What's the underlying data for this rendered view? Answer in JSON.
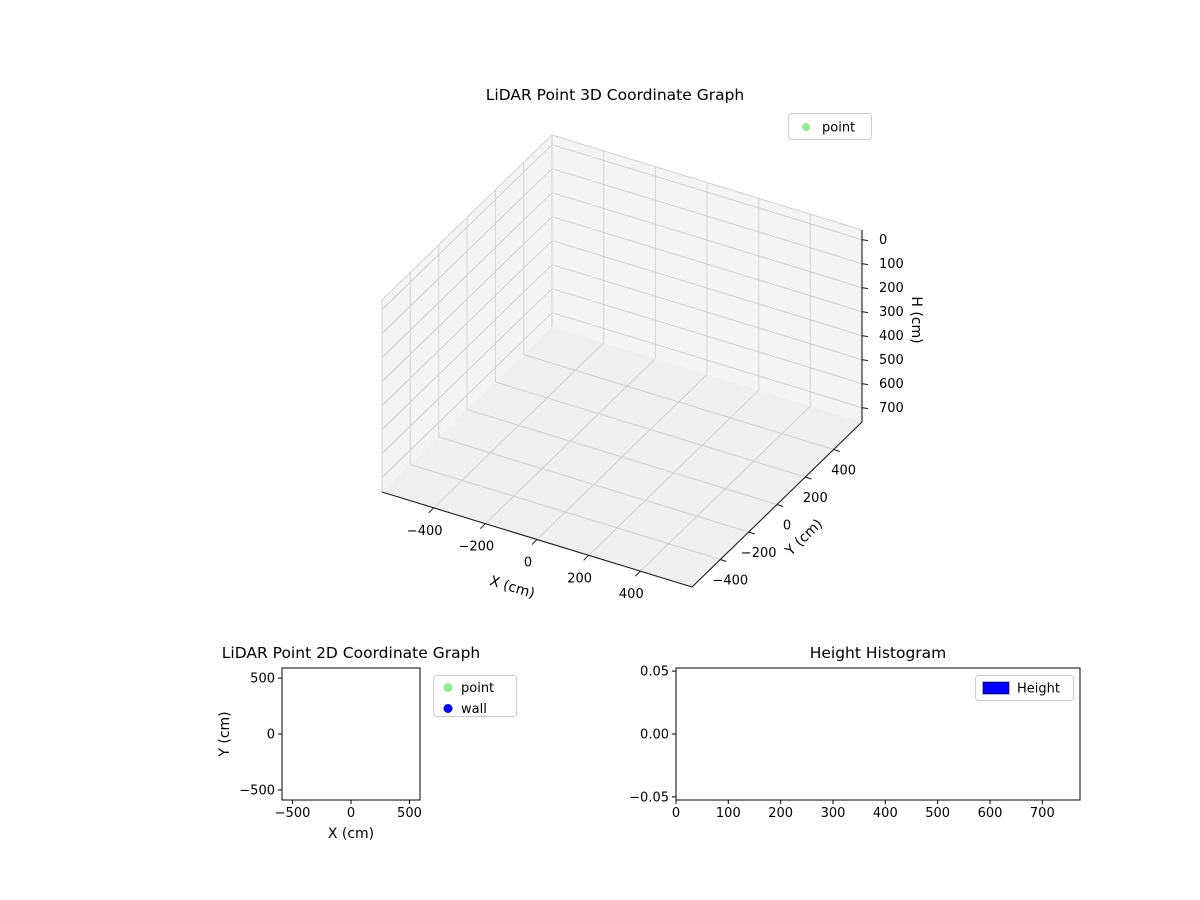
{
  "figure": {
    "background": "#ffffff",
    "colors": {
      "point": "#90ee90",
      "wall": "#0000ff",
      "height_bar": "#0000ff",
      "grid3d": "#d2d2d2",
      "pane3d": "#f2f2f2",
      "axis": "#1a1a1a",
      "legend_border": "#cccccc"
    }
  },
  "chart_data": [
    {
      "id": "plot3d",
      "type": "scatter3d",
      "title": "LiDAR Point 3D Coordinate Graph",
      "xlabel": "X (cm)",
      "ylabel": "Y (cm)",
      "zlabel": "H (cm)",
      "xlim": [
        -600,
        600
      ],
      "ylim": [
        -600,
        600
      ],
      "zlim": [
        -40,
        760
      ],
      "z_inverted": true,
      "grid": true,
      "x_tick_values": [
        -400,
        -200,
        0,
        200,
        400
      ],
      "x_tick_labels": [
        "−400",
        "−200",
        "0",
        "200",
        "400"
      ],
      "y_tick_values": [
        -400,
        -200,
        0,
        200,
        400
      ],
      "y_tick_labels": [
        "−400",
        "−200",
        "0",
        "200",
        "400"
      ],
      "z_tick_values": [
        0,
        100,
        200,
        300,
        400,
        500,
        600,
        700
      ],
      "z_tick_labels": [
        "0",
        "100",
        "200",
        "300",
        "400",
        "500",
        "600",
        "700"
      ],
      "legend": {
        "position": "upper right",
        "entries": [
          {
            "label": "point",
            "marker": "circle",
            "color": "#90ee90"
          }
        ]
      },
      "series": [
        {
          "name": "point",
          "color": "#90ee90",
          "points": []
        }
      ]
    },
    {
      "id": "plot2d",
      "type": "scatter",
      "title": "LiDAR Point 2D Coordinate Graph",
      "xlabel": "X (cm)",
      "ylabel": "Y (cm)",
      "xlim": [
        -590,
        590
      ],
      "ylim": [
        -590,
        590
      ],
      "grid": false,
      "x_tick_values": [
        -500,
        0,
        500
      ],
      "x_tick_labels": [
        "−500",
        "0",
        "500"
      ],
      "y_tick_values": [
        -500,
        0,
        500
      ],
      "y_tick_labels": [
        "−500",
        "0",
        "500"
      ],
      "legend": {
        "position": "outside upper right",
        "entries": [
          {
            "label": "point",
            "marker": "circle",
            "color": "#90ee90"
          },
          {
            "label": "wall",
            "marker": "circle",
            "color": "#0000ff"
          }
        ]
      },
      "series": [
        {
          "name": "point",
          "color": "#90ee90",
          "points": []
        },
        {
          "name": "wall",
          "color": "#0000ff",
          "points": []
        }
      ]
    },
    {
      "id": "height_histogram",
      "type": "bar",
      "title": "Height Histogram",
      "xlabel": "",
      "ylabel": "",
      "xlim": [
        0,
        772
      ],
      "ylim": [
        -0.0525,
        0.0525
      ],
      "grid": false,
      "x_tick_values": [
        0,
        100,
        200,
        300,
        400,
        500,
        600,
        700
      ],
      "x_tick_labels": [
        "0",
        "100",
        "200",
        "300",
        "400",
        "500",
        "600",
        "700"
      ],
      "y_tick_values": [
        -0.05,
        0,
        0.05
      ],
      "y_tick_labels": [
        "−0.05",
        "0.00",
        "0.05"
      ],
      "legend": {
        "position": "upper right",
        "entries": [
          {
            "label": "Height",
            "marker": "rect",
            "color": "#0000ff"
          }
        ]
      },
      "values": []
    }
  ]
}
